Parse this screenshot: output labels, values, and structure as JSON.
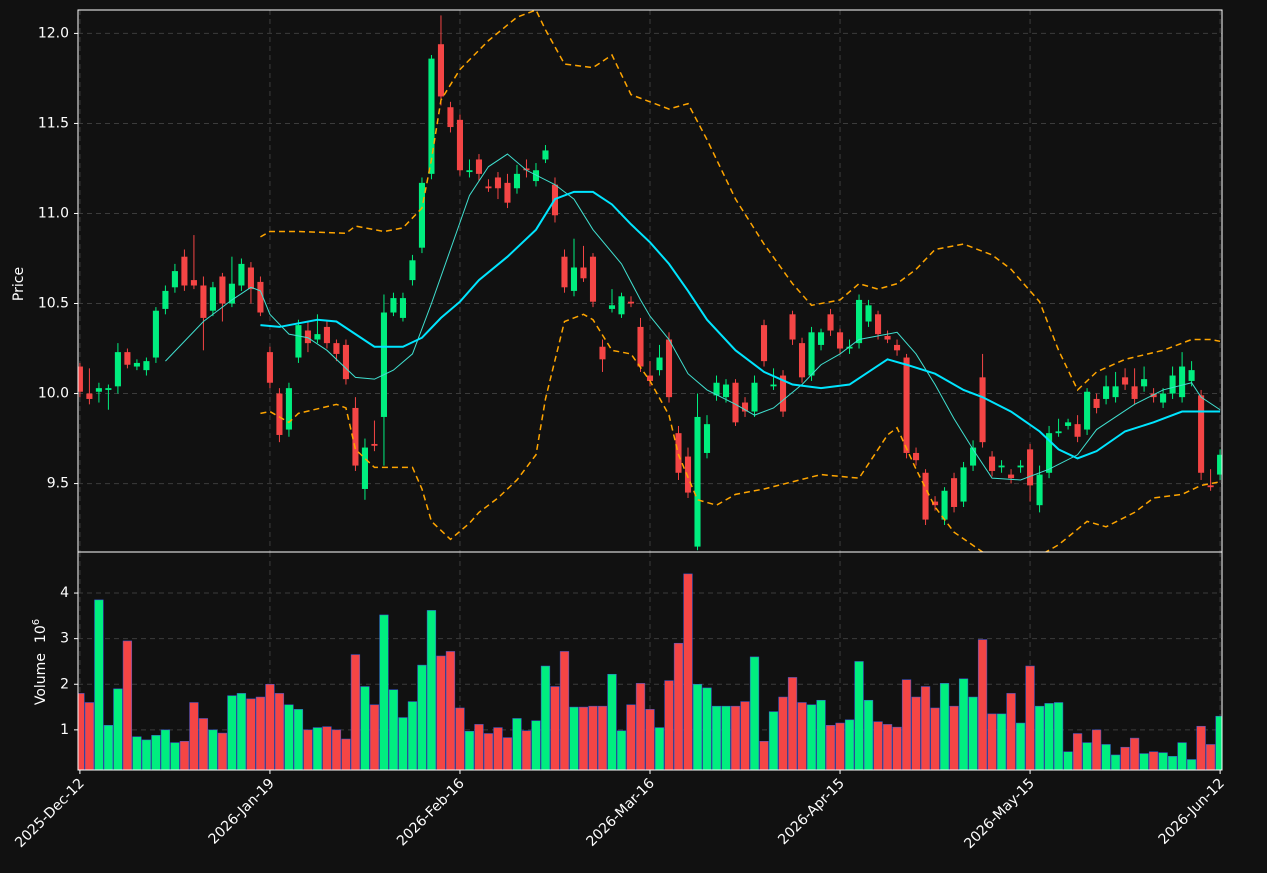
{
  "chart_data": {
    "type": "candlestick",
    "ylabel": "Price",
    "up_color": "#00ee7f",
    "down_color": "#f44545",
    "grid": true,
    "xlim": [
      -0.2,
      120.2
    ],
    "xticks": [
      {
        "value": 0,
        "label": "2025-Dec-12"
      },
      {
        "value": 20,
        "label": "2026-Jan-19"
      },
      {
        "value": 40,
        "label": "2026-Feb-16"
      },
      {
        "value": 60,
        "label": "2026-Mar-16"
      },
      {
        "value": 80,
        "label": "2026-Apr-15"
      },
      {
        "value": 100,
        "label": "2026-May-15"
      },
      {
        "value": 120,
        "label": "2026-Jun-12"
      }
    ],
    "ylim": [
      9.12,
      12.13
    ],
    "yticks": [
      9.5,
      {
        "value": 10,
        "label": "10.0"
      },
      10.5,
      {
        "value": 11,
        "label": "11.0"
      },
      11.5,
      {
        "value": 12,
        "label": "12.0"
      }
    ],
    "open": [
      10.15,
      10.0,
      10.01,
      10.02,
      10.04,
      10.23,
      10.15,
      10.13,
      10.2,
      10.47,
      10.59,
      10.76,
      10.63,
      10.6,
      10.46,
      10.65,
      10.5,
      10.6,
      10.7,
      10.62,
      10.23,
      10.0,
      9.8,
      10.2,
      10.35,
      10.3,
      10.37,
      10.28,
      10.27,
      9.92,
      9.47,
      9.72,
      9.87,
      10.45,
      10.42,
      10.63,
      10.81,
      11.22,
      11.94,
      11.59,
      11.52,
      11.23,
      11.3,
      11.15,
      11.2,
      11.17,
      11.14,
      11.25,
      11.18,
      11.3,
      11.16,
      10.76,
      10.57,
      10.7,
      10.76,
      10.26,
      10.47,
      10.44,
      10.51,
      10.37,
      10.1,
      10.13,
      10.3,
      9.78,
      9.65,
      9.15,
      9.67,
      9.99,
      9.98,
      10.06,
      9.95,
      9.9,
      10.38,
      10.04,
      10.1,
      10.44,
      10.28,
      10.1,
      10.27,
      10.44,
      10.34,
      10.25,
      10.28,
      10.4,
      10.44,
      10.32,
      10.27,
      10.2,
      9.67,
      9.56,
      9.4,
      9.3,
      9.53,
      9.4,
      9.6,
      10.09,
      9.65,
      9.59,
      9.55,
      9.59,
      9.69,
      9.38,
      9.56,
      9.78,
      9.82,
      9.83,
      9.8,
      9.97,
      9.97,
      9.98,
      10.09,
      10.04,
      10.04,
      10.0,
      9.95,
      10.0,
      9.98,
      10.07,
      9.99,
      9.49,
      9.55
    ],
    "high": [
      10.17,
      10.14,
      10.06,
      10.05,
      10.28,
      10.25,
      10.19,
      10.2,
      10.48,
      10.6,
      10.72,
      10.8,
      10.88,
      10.65,
      10.62,
      10.67,
      10.76,
      10.75,
      10.73,
      10.65,
      10.26,
      10.03,
      10.06,
      10.41,
      10.4,
      10.44,
      10.4,
      10.3,
      10.3,
      9.98,
      9.75,
      9.85,
      10.55,
      10.56,
      10.56,
      10.77,
      11.2,
      11.88,
      12.1,
      11.62,
      11.55,
      11.3,
      11.33,
      11.19,
      11.23,
      11.22,
      11.27,
      11.3,
      11.28,
      11.38,
      11.2,
      10.8,
      10.86,
      10.82,
      10.78,
      10.3,
      10.58,
      10.56,
      10.54,
      10.42,
      10.18,
      10.27,
      10.34,
      9.82,
      9.7,
      10.0,
      9.88,
      10.1,
      10.08,
      10.08,
      9.98,
      10.1,
      10.41,
      10.14,
      10.13,
      10.46,
      10.31,
      10.37,
      10.36,
      10.47,
      10.36,
      10.3,
      10.55,
      10.52,
      10.46,
      10.35,
      10.3,
      10.22,
      9.7,
      9.58,
      9.43,
      9.48,
      9.56,
      9.62,
      9.74,
      10.22,
      9.68,
      9.63,
      9.58,
      9.63,
      9.72,
      9.6,
      9.82,
      9.86,
      9.86,
      9.88,
      10.03,
      10.0,
      10.1,
      10.12,
      10.14,
      10.14,
      10.15,
      10.03,
      10.03,
      10.15,
      10.23,
      10.18,
      10.02,
      9.58,
      9.69
    ],
    "low": [
      9.98,
      9.94,
      9.95,
      9.91,
      10.0,
      10.14,
      10.13,
      10.1,
      10.17,
      10.44,
      10.56,
      10.57,
      10.58,
      10.24,
      10.43,
      10.4,
      10.48,
      10.57,
      10.5,
      10.43,
      10.03,
      9.73,
      9.76,
      10.17,
      10.23,
      10.28,
      10.25,
      10.18,
      10.05,
      9.57,
      9.41,
      9.68,
      9.6,
      10.43,
      10.4,
      10.6,
      10.78,
      11.19,
      11.6,
      11.45,
      11.21,
      11.2,
      11.18,
      11.12,
      11.08,
      11.03,
      11.11,
      11.2,
      11.15,
      11.28,
      10.95,
      10.56,
      10.54,
      10.62,
      10.48,
      10.12,
      10.45,
      10.42,
      10.48,
      10.12,
      10.04,
      10.1,
      9.95,
      9.52,
      9.42,
      9.13,
      9.64,
      9.96,
      9.95,
      9.82,
      9.87,
      9.87,
      10.15,
      10.02,
      9.87,
      10.27,
      10.06,
      10.07,
      10.24,
      10.32,
      10.22,
      10.22,
      10.25,
      10.37,
      10.3,
      10.28,
      10.21,
      9.64,
      9.6,
      9.27,
      9.35,
      9.27,
      9.34,
      9.37,
      9.57,
      9.7,
      9.54,
      9.56,
      9.5,
      9.56,
      9.4,
      9.34,
      9.53,
      9.76,
      9.8,
      9.73,
      9.77,
      9.89,
      9.94,
      9.95,
      10.02,
      9.94,
      10.01,
      9.95,
      9.92,
      9.97,
      9.95,
      10.04,
      9.52,
      9.46,
      9.52
    ],
    "close": [
      10.01,
      9.97,
      10.03,
      10.03,
      10.23,
      10.16,
      10.17,
      10.18,
      10.46,
      10.57,
      10.68,
      10.6,
      10.6,
      10.42,
      10.59,
      10.5,
      10.61,
      10.72,
      10.58,
      10.45,
      10.06,
      9.77,
      10.03,
      10.38,
      10.28,
      10.33,
      10.28,
      10.22,
      10.08,
      9.6,
      9.7,
      9.71,
      10.45,
      10.53,
      10.53,
      10.74,
      11.17,
      11.86,
      11.65,
      11.48,
      11.24,
      11.24,
      11.22,
      11.14,
      11.14,
      11.06,
      11.22,
      11.24,
      11.24,
      11.35,
      10.99,
      10.59,
      10.7,
      10.64,
      10.51,
      10.19,
      10.49,
      10.54,
      10.5,
      10.15,
      10.07,
      10.2,
      9.98,
      9.56,
      9.45,
      9.87,
      9.83,
      10.06,
      10.05,
      9.84,
      9.9,
      10.06,
      10.18,
      10.05,
      9.9,
      10.3,
      10.09,
      10.34,
      10.34,
      10.35,
      10.25,
      10.26,
      10.52,
      10.49,
      10.33,
      10.3,
      10.24,
      9.67,
      9.63,
      9.3,
      9.38,
      9.46,
      9.37,
      9.59,
      9.7,
      9.73,
      9.57,
      9.6,
      9.53,
      9.6,
      9.49,
      9.55,
      9.78,
      9.79,
      9.84,
      9.76,
      10.01,
      9.92,
      10.04,
      10.04,
      10.05,
      9.97,
      10.08,
      9.98,
      10.0,
      10.1,
      10.15,
      10.13,
      9.56,
      9.48,
      9.66
    ],
    "lines": [
      {
        "color": "#40e0d0",
        "width": 1,
        "dashed": false,
        "x": [
          9,
          13,
          16,
          18,
          19,
          20,
          22,
          24,
          26,
          29,
          31,
          33,
          35,
          37,
          39,
          41,
          43,
          45,
          47,
          50,
          52,
          54,
          57,
          59,
          60,
          62,
          64,
          66,
          69,
          71,
          73,
          76,
          78,
          80,
          82,
          86,
          88,
          90,
          92,
          94,
          96,
          99,
          102,
          105,
          107,
          111,
          114,
          117,
          118,
          120
        ],
        "values": [
          10.18,
          10.4,
          10.52,
          10.59,
          10.57,
          10.44,
          10.33,
          10.31,
          10.24,
          10.09,
          10.08,
          10.13,
          10.22,
          10.5,
          10.8,
          11.1,
          11.26,
          11.33,
          11.24,
          11.16,
          11.08,
          10.91,
          10.72,
          10.52,
          10.43,
          10.3,
          10.11,
          10.02,
          9.94,
          9.88,
          9.92,
          10.05,
          10.16,
          10.22,
          10.3,
          10.34,
          10.22,
          10.05,
          9.86,
          9.69,
          9.53,
          9.52,
          9.58,
          9.66,
          9.8,
          9.94,
          10.02,
          10.06,
          9.98,
          9.91
        ]
      },
      {
        "color": "#00e5ff",
        "width": 2,
        "dashed": false,
        "x": [
          19,
          21,
          25,
          27,
          29,
          31,
          34,
          36,
          38,
          40,
          42,
          45,
          48,
          50,
          52,
          54,
          56,
          58,
          60,
          62,
          64,
          66,
          69,
          72,
          75,
          78,
          81,
          83,
          85,
          87,
          90,
          93,
          95,
          98,
          101,
          103,
          105,
          107,
          110,
          113,
          116,
          120
        ],
        "values": [
          10.38,
          10.37,
          10.41,
          10.4,
          10.33,
          10.26,
          10.26,
          10.31,
          10.42,
          10.51,
          10.63,
          10.76,
          10.91,
          11.08,
          11.12,
          11.12,
          11.05,
          10.94,
          10.84,
          10.72,
          10.57,
          10.41,
          10.24,
          10.12,
          10.05,
          10.03,
          10.05,
          10.12,
          10.19,
          10.16,
          10.11,
          10.02,
          9.98,
          9.9,
          9.79,
          9.69,
          9.64,
          9.68,
          9.79,
          9.84,
          9.9,
          9.9
        ]
      },
      {
        "color": "#ffa500",
        "width": 1.5,
        "dashed": true,
        "x": [
          19,
          20,
          23,
          28,
          29,
          32,
          34,
          36,
          37,
          38,
          40,
          43,
          46,
          48,
          49,
          51,
          54,
          56,
          58,
          60,
          62,
          64,
          66,
          69,
          72,
          75,
          77,
          80,
          82,
          84,
          86,
          88,
          90,
          93,
          96,
          98,
          101,
          103,
          105,
          107,
          110,
          114,
          117,
          119,
          120
        ],
        "values": [
          10.87,
          10.9,
          10.9,
          10.89,
          10.93,
          10.9,
          10.92,
          11.03,
          11.3,
          11.63,
          11.8,
          11.96,
          12.09,
          12.13,
          12.02,
          11.83,
          11.81,
          11.88,
          11.66,
          11.62,
          11.58,
          11.61,
          11.41,
          11.08,
          10.83,
          10.61,
          10.49,
          10.52,
          10.61,
          10.58,
          10.61,
          10.69,
          10.8,
          10.83,
          10.77,
          10.69,
          10.51,
          10.24,
          10.02,
          10.12,
          10.19,
          10.24,
          10.3,
          10.3,
          10.29
        ]
      },
      {
        "color": "#ffa500",
        "width": 1.5,
        "dashed": true,
        "x": [
          19,
          20,
          22,
          23,
          27,
          28,
          29,
          31,
          35,
          36,
          37,
          39,
          41,
          42,
          44,
          46,
          48,
          49,
          51,
          53,
          54,
          56,
          58,
          60,
          62,
          63,
          65,
          67,
          69,
          72,
          75,
          78,
          82,
          83,
          85,
          86,
          88,
          90,
          92,
          95,
          97,
          100,
          103,
          106,
          108,
          111,
          113,
          116,
          118,
          120
        ],
        "values": [
          9.89,
          9.9,
          9.84,
          9.89,
          9.94,
          9.92,
          9.69,
          9.59,
          9.59,
          9.47,
          9.29,
          9.19,
          9.28,
          9.34,
          9.42,
          9.52,
          9.66,
          9.97,
          10.4,
          10.44,
          10.41,
          10.24,
          10.22,
          10.07,
          9.88,
          9.66,
          9.41,
          9.38,
          9.44,
          9.47,
          9.51,
          9.55,
          9.53,
          9.61,
          9.77,
          9.81,
          9.58,
          9.37,
          9.23,
          9.12,
          9.08,
          9.07,
          9.16,
          9.29,
          9.26,
          9.34,
          9.42,
          9.44,
          9.49,
          9.51
        ]
      }
    ],
    "volume": {
      "ylabel": "Volume",
      "offset_label": {
        "base": "10",
        "exponent": "6"
      },
      "ylim": [
        0.12,
        4.9
      ],
      "yticks": [
        1,
        2,
        3,
        4
      ],
      "values": [
        1.8,
        1.6,
        3.85,
        1.1,
        1.9,
        2.95,
        0.85,
        0.78,
        0.88,
        1.0,
        0.72,
        0.75,
        1.6,
        1.25,
        1.0,
        0.93,
        1.75,
        1.8,
        1.68,
        1.72,
        2.0,
        1.8,
        1.55,
        1.45,
        1.0,
        1.05,
        1.07,
        1.0,
        0.8,
        2.65,
        1.95,
        1.55,
        3.52,
        1.88,
        1.27,
        1.62,
        2.42,
        3.62,
        2.62,
        2.72,
        1.48,
        0.97,
        1.12,
        0.92,
        1.05,
        0.83,
        1.25,
        0.98,
        1.2,
        2.4,
        1.95,
        2.72,
        1.5,
        1.5,
        1.52,
        1.52,
        2.22,
        0.98,
        1.55,
        2.02,
        1.45,
        1.05,
        2.08,
        2.9,
        4.42,
        2.0,
        1.92,
        1.52,
        1.52,
        1.52,
        1.62,
        2.6,
        0.75,
        1.4,
        1.72,
        2.15,
        1.6,
        1.55,
        1.65,
        1.1,
        1.15,
        1.22,
        2.5,
        1.65,
        1.18,
        1.12,
        1.06,
        2.1,
        1.72,
        1.95,
        1.48,
        2.02,
        1.52,
        2.12,
        1.72,
        2.98,
        1.35,
        1.35,
        1.8,
        1.15,
        2.4,
        1.52,
        1.58,
        1.6,
        0.52,
        0.92,
        0.72,
        1.0,
        0.68,
        0.45,
        0.62,
        0.82,
        0.48,
        0.52,
        0.5,
        0.42,
        0.72,
        0.35,
        1.08,
        0.68,
        1.3
      ]
    }
  }
}
